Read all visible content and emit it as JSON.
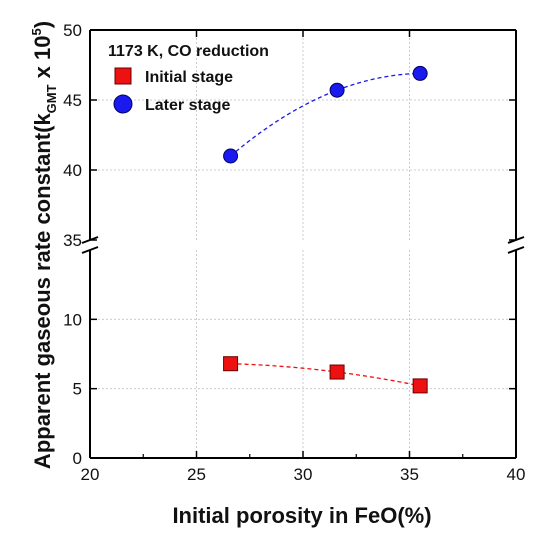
{
  "chart_data": {
    "type": "scatter",
    "title": "",
    "legend_title": "1173 K, CO reduction",
    "legend_position": "top-left",
    "xlabel": "Initial porosity in FeO(%)",
    "ylabel_main": "Apparent gaseous rate constant(k",
    "ylabel_sub": "GMT",
    "ylabel_mid": " x 10",
    "ylabel_sup": "5",
    "ylabel_end": ")",
    "xlim": [
      20,
      40
    ],
    "ylim_lower": [
      0,
      15
    ],
    "ylim_upper": [
      35,
      50
    ],
    "axis_break": true,
    "grid": true,
    "x_ticks": [
      "20",
      "25",
      "30",
      "35",
      "40"
    ],
    "y_ticks_lower": [
      "0",
      "5",
      "10"
    ],
    "y_ticks_upper": [
      "35",
      "40",
      "45",
      "50"
    ],
    "series": [
      {
        "name": "Initial stage",
        "marker": "square",
        "color": "#ee1111",
        "fit_line": "dashed",
        "x": [
          26.6,
          31.6,
          35.5
        ],
        "y": [
          6.8,
          6.2,
          5.2
        ]
      },
      {
        "name": "Later stage",
        "marker": "circle",
        "color": "#1a1aee",
        "fit_line": "dashed",
        "x": [
          26.6,
          31.6,
          35.5
        ],
        "y": [
          41.0,
          45.7,
          46.9
        ]
      }
    ]
  }
}
